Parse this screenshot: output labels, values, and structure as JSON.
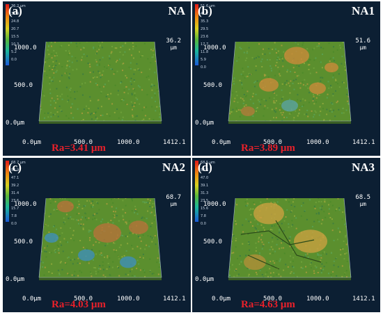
{
  "panels": [
    {
      "letter": "(a)",
      "name": "NA",
      "ra": "Ra=3.41 μm",
      "z_max": "36.2",
      "z_unit": "μm",
      "legend": [
        "36.2 μm",
        "31.4",
        "24.8",
        "20.7",
        "15.5",
        "10.3",
        "5.2",
        "0.0"
      ],
      "y_ticks": [
        "1000.0",
        "500.0",
        "0.0μm"
      ],
      "x_ticks": [
        "0.0μm",
        "500.0",
        "1000.0",
        "1412.1"
      ],
      "texture": "fine-uniform"
    },
    {
      "letter": "(b)",
      "name": "NA1",
      "ra": "Ra=3.89 μm",
      "z_max": "51.6",
      "z_unit": "μm",
      "legend": [
        "51.6 μm",
        "41.2",
        "35.3",
        "29.5",
        "23.6",
        "17.7",
        "11.8",
        "5.9",
        "0.0"
      ],
      "y_ticks": [
        "1000.0",
        "500.0",
        "0.0μm"
      ],
      "x_ticks": [
        "0.0μm",
        "500.0",
        "1000.0",
        "1412.1"
      ],
      "texture": "patchy"
    },
    {
      "letter": "(c)",
      "name": "NA2",
      "ra": "Ra=4.03 μm",
      "z_max": "68.7",
      "z_unit": "μm",
      "legend": [
        "68.7 μm",
        "54.9",
        "47.1",
        "39.2",
        "31.4",
        "23.6",
        "15.7",
        "7.8",
        "0.0"
      ],
      "y_ticks": [
        "1000.0",
        "500.0",
        "0.0μm"
      ],
      "x_ticks": [
        "0.0μm",
        "500.0",
        "1000.0",
        "1412.1"
      ],
      "texture": "patchy-blue"
    },
    {
      "letter": "(d)",
      "name": "NA3",
      "ra": "Ra=4.63 μm",
      "z_max": "68.5",
      "z_unit": "μm",
      "legend": [
        "68.5 μm",
        "54.8",
        "47.0",
        "39.1",
        "31.3",
        "23.5",
        "15.6",
        "7.8",
        "0.0"
      ],
      "y_ticks": [
        "1000.0",
        "500.0",
        "0.0μm"
      ],
      "x_ticks": [
        "0.0μm",
        "500.0",
        "1000.0",
        "1412.1"
      ],
      "texture": "cracked"
    }
  ],
  "colors": {
    "background": "#0c1f33",
    "ra_text": "#e8202a",
    "surface_base": "#5b8f2e"
  }
}
